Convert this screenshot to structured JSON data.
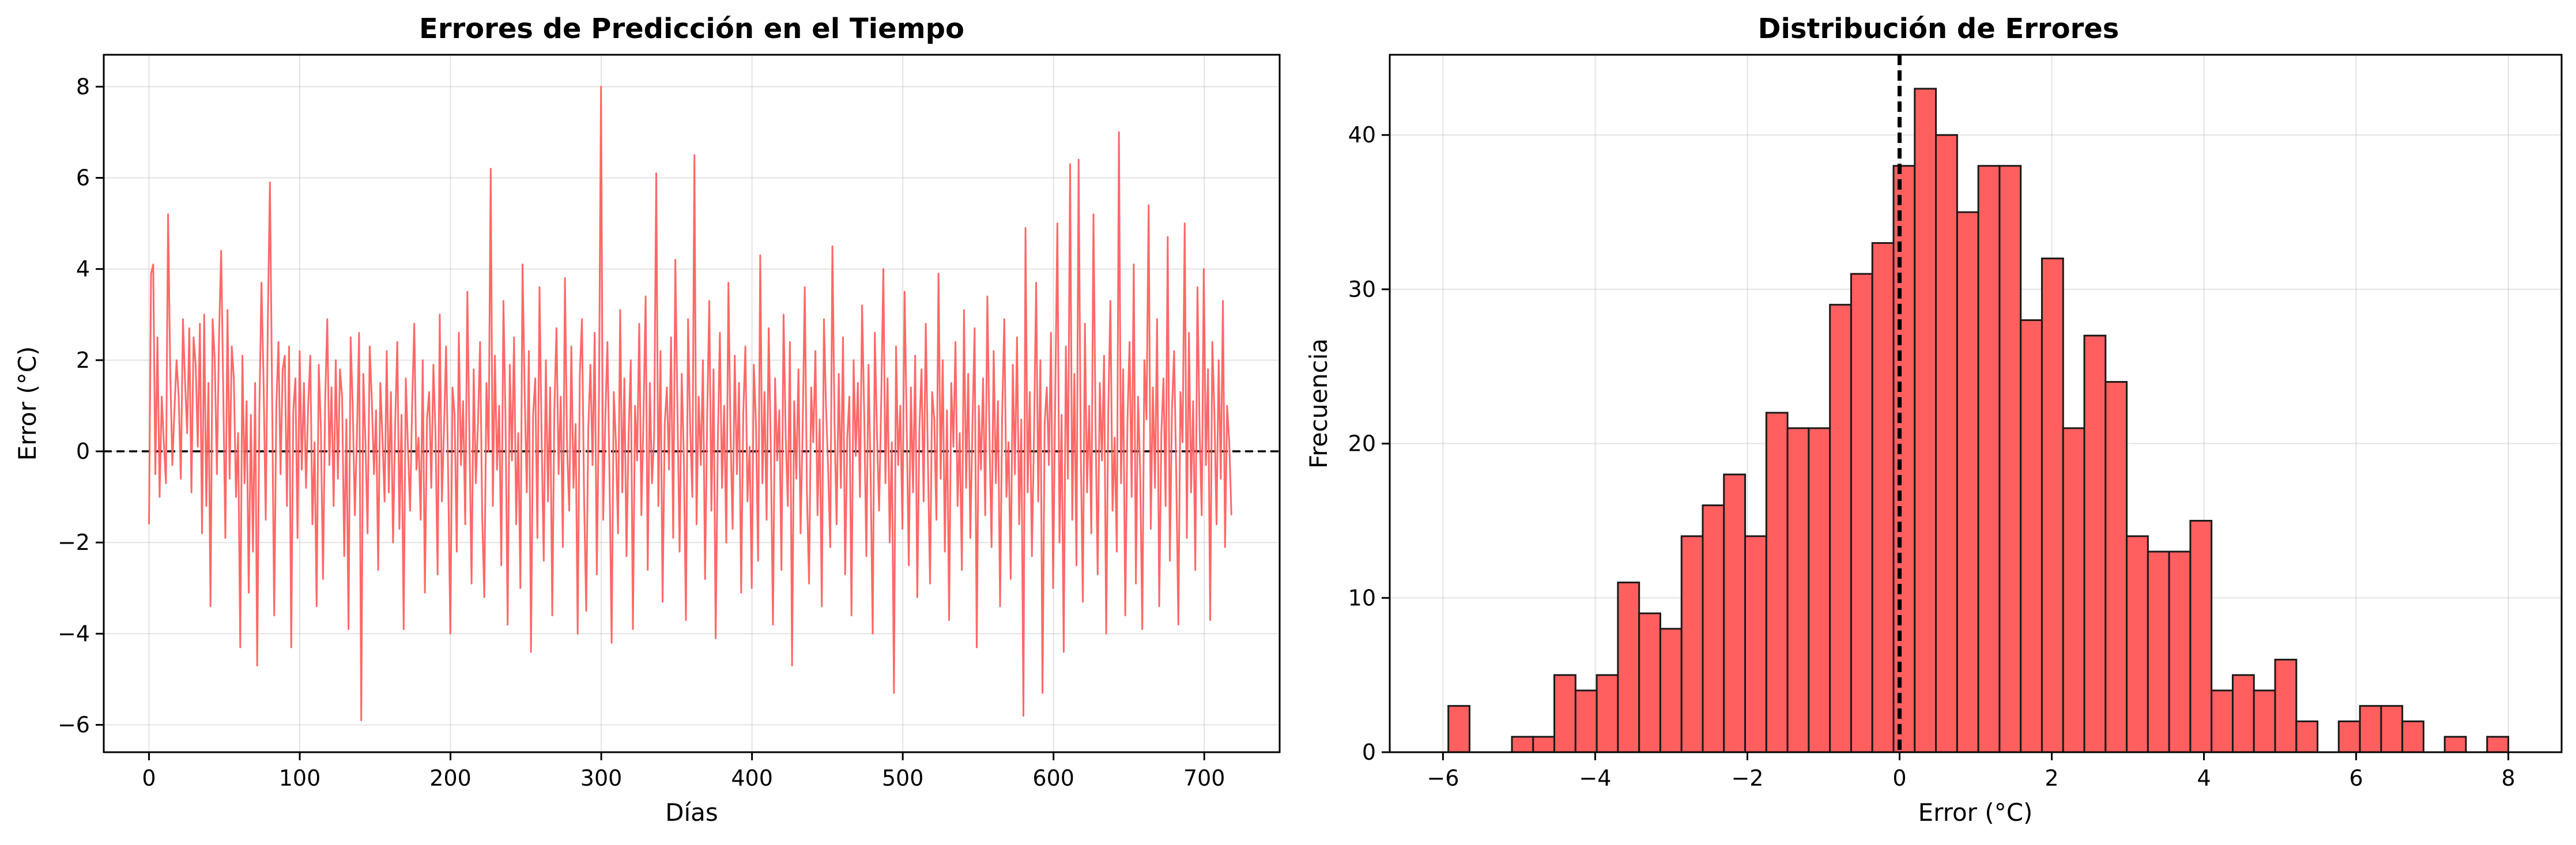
{
  "colors": {
    "series": "#ff5b5b",
    "bar_fill": "#ff5f5f",
    "bar_edge": "#1a1a1a",
    "reference": "#000000"
  },
  "chart_data": [
    {
      "type": "line",
      "title": "Errores de Predicción en el Tiempo",
      "xlabel": "Días",
      "ylabel": "Error (°C)",
      "xlim": [
        -30,
        750
      ],
      "ylim": [
        -6.6,
        8.7
      ],
      "xticks": [
        0,
        100,
        200,
        300,
        400,
        500,
        600,
        700
      ],
      "yticks": [
        -6,
        -4,
        -2,
        0,
        2,
        4,
        6,
        8
      ],
      "xtick_labels": [
        "0",
        "100",
        "200",
        "300",
        "400",
        "500",
        "600",
        "700"
      ],
      "ytick_labels": [
        "−6",
        "−4",
        "−2",
        "0",
        "2",
        "4",
        "6",
        "8"
      ],
      "grid": true,
      "reference_line": {
        "y": 0,
        "style": "dashed"
      },
      "series": [
        {
          "values": [
            -1.6,
            3.9,
            4.1,
            -0.5,
            2.5,
            -1.0,
            1.2,
            0.2,
            -0.7,
            5.2,
            1.8,
            -0.3,
            0.9,
            2.0,
            1.2,
            -0.6,
            2.9,
            1.5,
            0.4,
            2.7,
            -0.9,
            2.5,
            1.9,
            0.1,
            2.8,
            -1.8,
            3.0,
            -1.2,
            1.5,
            -3.4,
            2.9,
            2.0,
            -0.5,
            2.5,
            4.4,
            1.3,
            -1.9,
            3.1,
            -0.6,
            2.3,
            1.6,
            -1.0,
            0.4,
            -4.3,
            2.1,
            -0.7,
            1.1,
            -3.1,
            0.8,
            -2.2,
            1.5,
            -4.7,
            0.8,
            3.7,
            1.5,
            -1.5,
            2.9,
            5.9,
            1.3,
            -3.6,
            1.0,
            2.4,
            -0.5,
            1.8,
            2.1,
            -1.2,
            2.3,
            -4.3,
            0.9,
            1.6,
            -1.9,
            2.2,
            -0.4,
            1.5,
            -0.8,
            1.0,
            2.1,
            -1.6,
            0.2,
            -3.4,
            1.9,
            0.5,
            -2.8,
            1.1,
            2.9,
            -0.3,
            1.4,
            -1.2,
            2.0,
            -0.6,
            1.8,
            1.2,
            -2.3,
            0.7,
            -3.9,
            2.5,
            1.0,
            -1.4,
            0.4,
            2.6,
            -5.9,
            1.7,
            0.2,
            -1.8,
            2.3,
            1.1,
            -0.5,
            0.9,
            -2.6,
            1.5,
            0.3,
            -1.1,
            2.2,
            -0.9,
            1.3,
            -2.0,
            0.6,
            2.4,
            -1.7,
            0.8,
            -3.9,
            1.6,
            0.1,
            -1.3,
            1.0,
            2.8,
            -0.4,
            0.3,
            -1.5,
            2.0,
            -3.1,
            0.7,
            1.3,
            -0.8,
            1.9,
            0.4,
            -2.7,
            3.0,
            -1.1,
            0.5,
            2.3,
            -0.6,
            -4.0,
            1.4,
            0.8,
            -2.2,
            2.6,
            -0.3,
            1.1,
            -1.6,
            3.5,
            0.2,
            -2.9,
            1.8,
            -0.7,
            0.6,
            2.4,
            -1.4,
            -3.2,
            1.5,
            0.0,
            6.2,
            -1.2,
            2.1,
            -0.4,
            1.0,
            -2.5,
            3.3,
            0.7,
            -3.8,
            1.9,
            -0.2,
            2.5,
            -1.6,
            0.4,
            -3.0,
            4.1,
            1.3,
            -0.9,
            2.2,
            -4.4,
            0.8,
            1.6,
            -1.9,
            3.6,
            0.3,
            -2.4,
            2.0,
            -1.1,
            1.4,
            -3.6,
            0.9,
            2.7,
            -0.5,
            1.2,
            -2.1,
            3.8,
            0.1,
            -1.3,
            2.3,
            -0.8,
            0.6,
            -4.0,
            1.7,
            2.9,
            -1.0,
            -3.5,
            0.5,
            1.9,
            -0.3,
            2.6,
            -2.7,
            1.1,
            8.0,
            -1.5,
            0.7,
            2.4,
            -0.6,
            -4.2,
            1.3,
            0.2,
            -1.8,
            3.1,
            -0.9,
            1.6,
            -2.3,
            0.4,
            2.0,
            -3.9,
            1.0,
            -0.2,
            2.8,
            -1.4,
            0.8,
            3.4,
            -2.6,
            1.5,
            -0.7,
            0.3,
            6.1,
            -1.2,
            2.2,
            -3.3,
            0.6,
            1.4,
            -0.4,
            2.5,
            -1.9,
            4.2,
            0.9,
            -2.2,
            1.7,
            -0.1,
            -3.7,
            2.9,
            0.5,
            -1.0,
            6.5,
            -1.6,
            1.2,
            -0.3,
            2.0,
            -2.8,
            0.7,
            3.3,
            -1.3,
            1.8,
            -4.1,
            0.2,
            2.6,
            -0.8,
            1.0,
            -2.0,
            3.7,
            0.4,
            -1.7,
            2.1,
            -0.5,
            1.5,
            -3.1,
            0.8,
            2.3,
            -1.1,
            0.1,
            -3.0,
            1.9,
            0.6,
            -2.4,
            4.3,
            -0.7,
            1.3,
            -1.5,
            2.7,
            0.0,
            -3.8,
            1.6,
            -0.2,
            0.9,
            -2.6,
            3.0,
            0.3,
            -1.2,
            2.4,
            -4.7,
            1.1,
            -0.6,
            1.8,
            -1.8,
            0.5,
            3.6,
            -0.9,
            -2.9,
            1.4,
            0.2,
            2.2,
            -1.4,
            0.7,
            -3.4,
            2.9,
            1.0,
            -0.4,
            -2.1,
            4.5,
            0.6,
            -1.6,
            1.7,
            -0.8,
            2.5,
            -2.7,
            0.3,
            1.2,
            -3.6,
            2.0,
            -0.1,
            1.5,
            -1.0,
            3.2,
            0.8,
            -2.3,
            1.9,
            -0.5,
            -4.0,
            2.6,
            0.4,
            -1.3,
            1.1,
            4.0,
            -0.7,
            1.6,
            -2.0,
            0.2,
            -5.3,
            2.3,
            -0.3,
            1.0,
            -1.7,
            3.5,
            0.6,
            -2.5,
            1.4,
            -0.9,
            2.1,
            -3.2,
            0.5,
            1.8,
            -1.1,
            2.8,
            -0.2,
            -2.9,
            1.3,
            0.7,
            -1.5,
            3.9,
            -0.6,
            2.0,
            -2.2,
            0.9,
            -3.7,
            1.5,
            0.1,
            2.4,
            -1.2,
            0.4,
            -2.6,
            3.1,
            -0.8,
            1.7,
            -1.9,
            0.6,
            2.7,
            -4.3,
            1.0,
            -0.4,
            1.6,
            -1.4,
            3.4,
            0.3,
            -2.1,
            2.2,
            -0.7,
            1.1,
            -3.4,
            0.8,
            2.9,
            -1.0,
            0.2,
            -2.8,
            1.9,
            -0.5,
            2.5,
            -1.6,
            0.7,
            -5.8,
            4.9,
            -0.9,
            1.3,
            -2.3,
            0.4,
            3.7,
            -1.1,
            2.0,
            -5.3,
            0.6,
            1.4,
            -0.3,
            2.6,
            -3.0,
            1.2,
            5.0,
            -2.0,
            0.8,
            -4.4,
            2.3,
            -0.6,
            6.3,
            -1.5,
            1.7,
            -2.5,
            6.4,
            0.1,
            -3.3,
            2.8,
            -0.9,
            1.0,
            -1.8,
            5.2,
            0.5,
            -2.7,
            1.5,
            -0.2,
            2.1,
            -4.0,
            0.9,
            3.3,
            -1.3,
            0.3,
            -2.2,
            7.0,
            -0.7,
            1.8,
            -3.6,
            0.6,
            2.4,
            -1.0,
            4.1,
            -2.9,
            1.2,
            -0.4,
            -3.9,
            2.0,
            0.7,
            5.4,
            -1.7,
            1.4,
            -0.8,
            2.9,
            -3.4,
            0.4,
            1.6,
            -1.2,
            4.7,
            -2.4,
            0.9,
            2.2,
            -0.5,
            -3.8,
            1.3,
            0.2,
            5.0,
            -1.9,
            2.6,
            -0.9,
            1.1,
            -2.6,
            3.6,
            0.5,
            -1.4,
            4.0,
            -0.3,
            1.8,
            -3.7,
            2.4,
            0.8,
            -1.6,
            2.0,
            -0.6,
            3.3,
            -2.1,
            1.0,
            0.2,
            -1.4
          ]
        }
      ]
    },
    {
      "type": "bar",
      "subtype": "histogram",
      "title": "Distribución de Errores",
      "xlabel": "Error (°C)",
      "ylabel": "Frecuencia",
      "xlim": [
        -6.7,
        8.7
      ],
      "ylim": [
        0,
        45.2
      ],
      "xticks": [
        -6,
        -4,
        -2,
        0,
        2,
        4,
        6,
        8
      ],
      "yticks": [
        0,
        10,
        20,
        30,
        40
      ],
      "xtick_labels": [
        "−6",
        "−4",
        "−2",
        "0",
        "2",
        "4",
        "6",
        "8"
      ],
      "ytick_labels": [
        "0",
        "10",
        "20",
        "30",
        "40"
      ],
      "grid": true,
      "reference_line": {
        "x": 0,
        "style": "dashed"
      },
      "bin_start": -5.93,
      "bin_width": 0.2786,
      "values": [
        3,
        0,
        0,
        1,
        1,
        5,
        4,
        5,
        11,
        9,
        8,
        14,
        16,
        18,
        14,
        22,
        21,
        21,
        29,
        31,
        33,
        38,
        43,
        40,
        35,
        38,
        38,
        28,
        32,
        21,
        27,
        24,
        14,
        13,
        13,
        15,
        4,
        5,
        4,
        6,
        2,
        0,
        2,
        3,
        3,
        2,
        0,
        1,
        0,
        1
      ]
    }
  ]
}
